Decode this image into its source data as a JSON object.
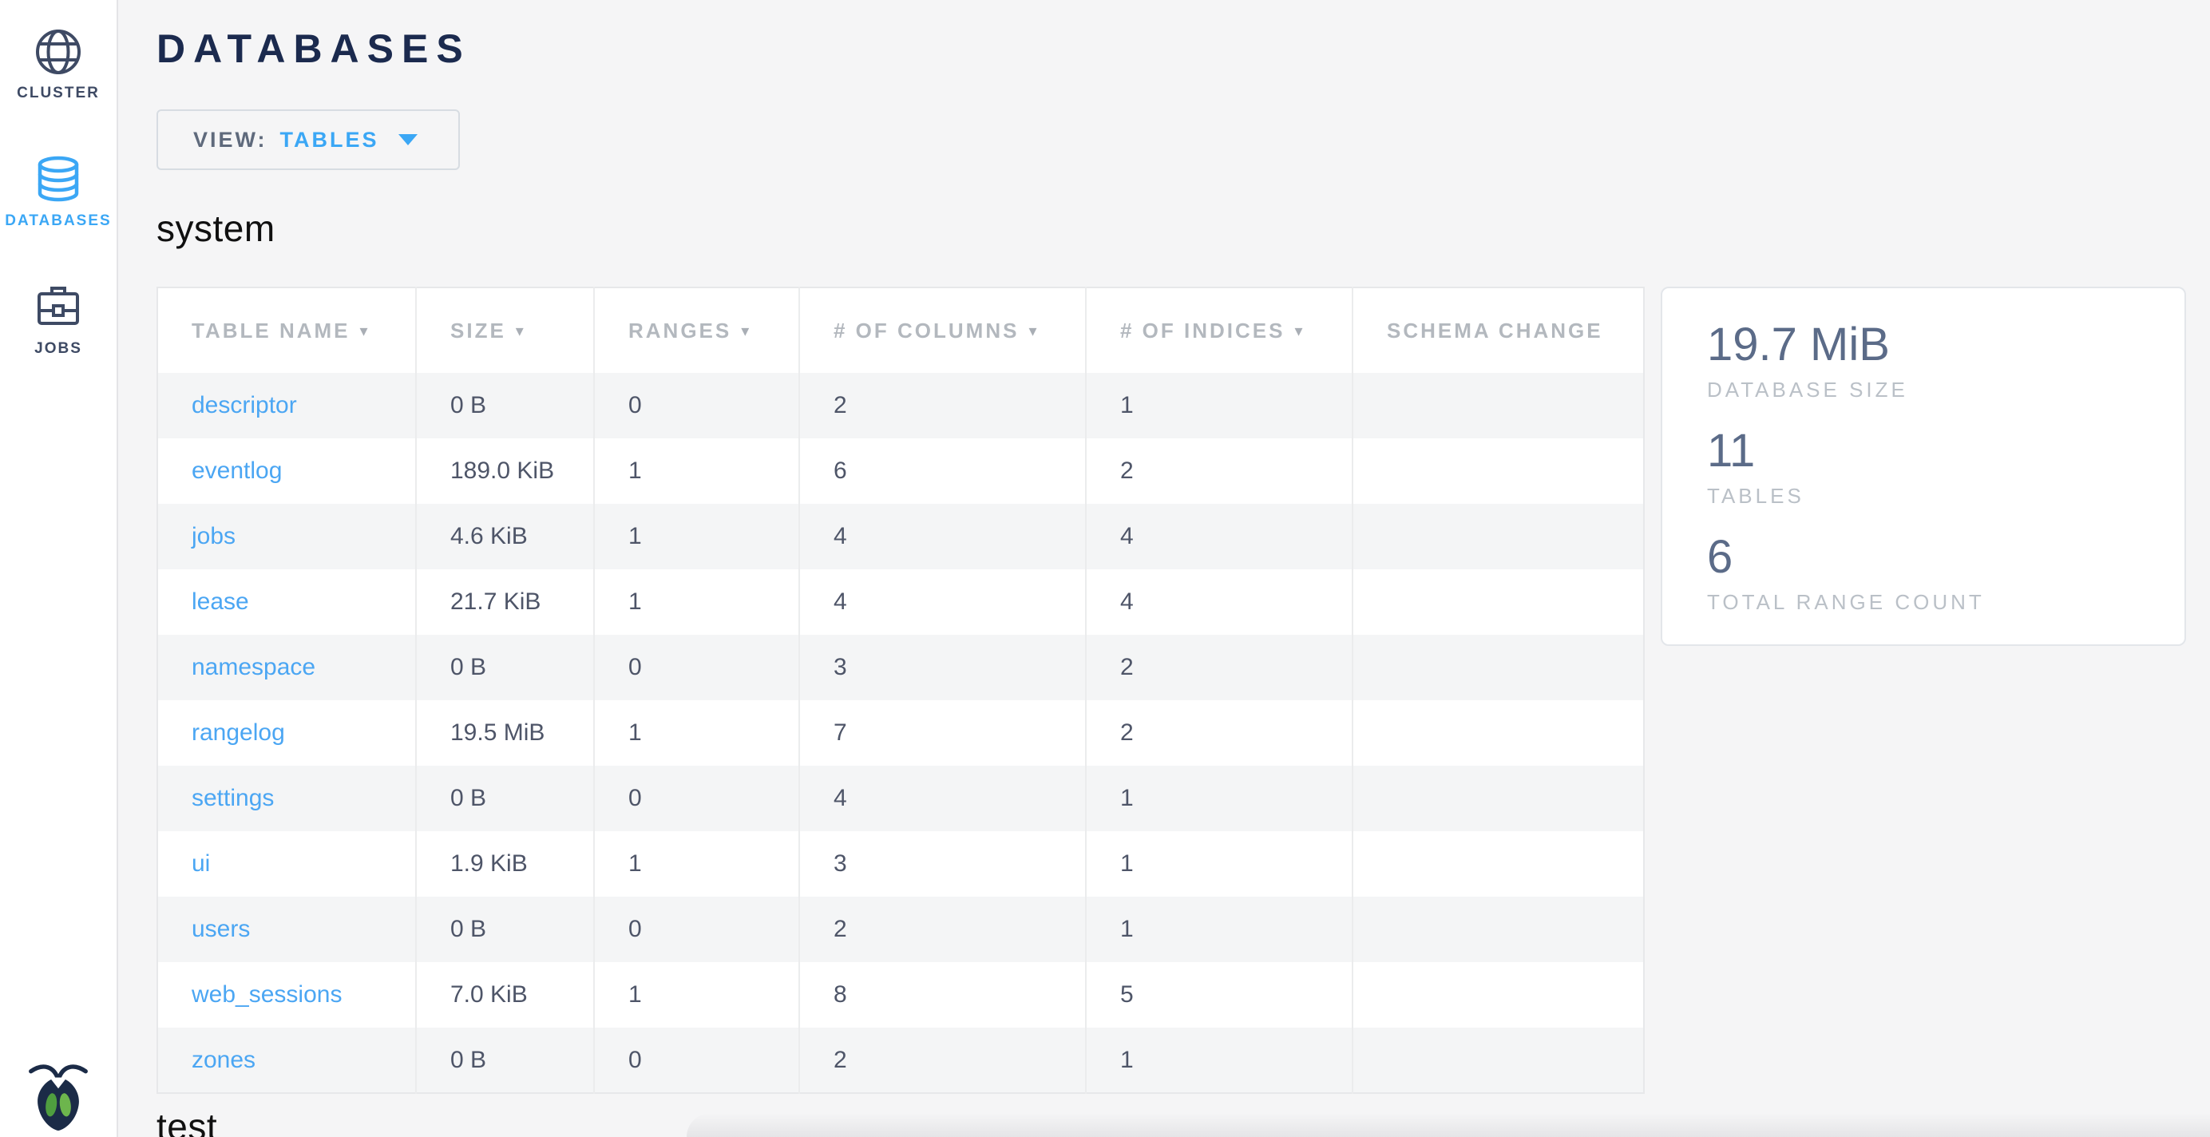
{
  "colors": {
    "accent_blue": "#3ba7f5",
    "navy": "#1b2a4e",
    "link_blue": "#4ba6f3"
  },
  "sidebar": {
    "items": [
      {
        "label": "CLUSTER",
        "icon": "globe-icon",
        "active": false
      },
      {
        "label": "DATABASES",
        "icon": "database-stack-icon",
        "active": true
      },
      {
        "label": "JOBS",
        "icon": "briefcase-icon",
        "active": false
      }
    ],
    "logo": "cockroach-bug-icon"
  },
  "header": {
    "title": "DATABASES"
  },
  "view_control": {
    "label": "VIEW:",
    "value": "TABLES"
  },
  "sections": [
    {
      "heading": "system"
    },
    {
      "heading": "test"
    }
  ],
  "table": {
    "columns": [
      {
        "label": "TABLE NAME",
        "sortable": true
      },
      {
        "label": "SIZE",
        "sortable": true
      },
      {
        "label": "RANGES",
        "sortable": true
      },
      {
        "label": "# OF COLUMNS",
        "sortable": true
      },
      {
        "label": "# OF INDICES",
        "sortable": true
      },
      {
        "label": "SCHEMA CHANGE",
        "sortable": false
      }
    ],
    "rows": [
      {
        "table_name": "descriptor",
        "size": "0 B",
        "ranges": "0",
        "columns": "2",
        "indices": "1",
        "schema_change": ""
      },
      {
        "table_name": "eventlog",
        "size": "189.0 KiB",
        "ranges": "1",
        "columns": "6",
        "indices": "2",
        "schema_change": ""
      },
      {
        "table_name": "jobs",
        "size": "4.6 KiB",
        "ranges": "1",
        "columns": "4",
        "indices": "4",
        "schema_change": ""
      },
      {
        "table_name": "lease",
        "size": "21.7 KiB",
        "ranges": "1",
        "columns": "4",
        "indices": "4",
        "schema_change": ""
      },
      {
        "table_name": "namespace",
        "size": "0 B",
        "ranges": "0",
        "columns": "3",
        "indices": "2",
        "schema_change": ""
      },
      {
        "table_name": "rangelog",
        "size": "19.5 MiB",
        "ranges": "1",
        "columns": "7",
        "indices": "2",
        "schema_change": ""
      },
      {
        "table_name": "settings",
        "size": "0 B",
        "ranges": "0",
        "columns": "4",
        "indices": "1",
        "schema_change": ""
      },
      {
        "table_name": "ui",
        "size": "1.9 KiB",
        "ranges": "1",
        "columns": "3",
        "indices": "1",
        "schema_change": ""
      },
      {
        "table_name": "users",
        "size": "0 B",
        "ranges": "0",
        "columns": "2",
        "indices": "1",
        "schema_change": ""
      },
      {
        "table_name": "web_sessions",
        "size": "7.0 KiB",
        "ranges": "1",
        "columns": "8",
        "indices": "5",
        "schema_change": ""
      },
      {
        "table_name": "zones",
        "size": "0 B",
        "ranges": "0",
        "columns": "2",
        "indices": "1",
        "schema_change": ""
      }
    ]
  },
  "summary": {
    "stats": [
      {
        "value": "19.7 MiB",
        "label": "DATABASE SIZE"
      },
      {
        "value": "11",
        "label": "TABLES"
      },
      {
        "value": "6",
        "label": "TOTAL RANGE COUNT"
      }
    ]
  }
}
